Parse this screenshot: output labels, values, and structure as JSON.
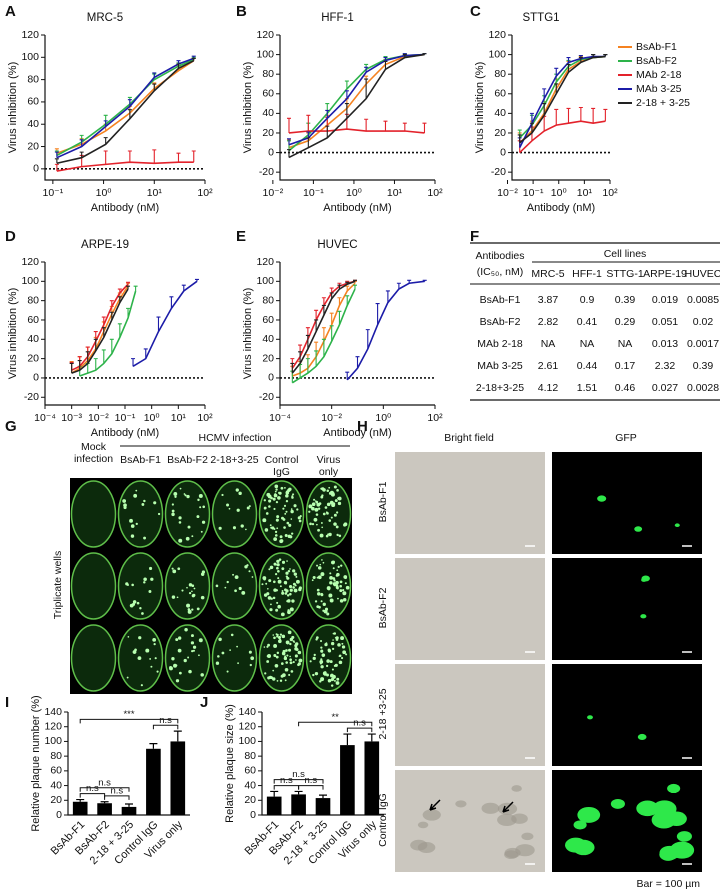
{
  "chart_data": [
    {
      "panel": "A",
      "type": "line",
      "title": "MRC-5",
      "xlabel": "Antibody (nM)",
      "ylabel": "Virus inhibition (%)",
      "xscale": "log",
      "xlim": [
        0.07,
        100
      ],
      "xticks": [
        {
          "value": 0.1,
          "label": "10⁻¹"
        },
        {
          "value": 1,
          "label": "10⁰"
        },
        {
          "value": 10,
          "label": "10¹"
        },
        {
          "value": 100,
          "label": "10²"
        }
      ],
      "ylim": [
        -10,
        120
      ],
      "yticks": [
        0,
        20,
        40,
        60,
        80,
        100,
        120
      ],
      "zero_line": true,
      "x": [
        0.12,
        0.37,
        1.1,
        3.3,
        10,
        30,
        60
      ],
      "series": [
        {
          "color": "#f58220",
          "values": [
            14,
            22,
            34,
            50,
            72,
            88,
            97
          ],
          "errors": [
            4,
            5,
            6,
            6,
            5,
            4,
            2
          ]
        },
        {
          "color": "#2db34a",
          "values": [
            12,
            24,
            40,
            58,
            80,
            92,
            98
          ],
          "errors": [
            4,
            6,
            8,
            6,
            5,
            3,
            2
          ]
        },
        {
          "color": "#e3222b",
          "values": [
            -2,
            2,
            4,
            6,
            5,
            6,
            6
          ],
          "errors": [
            6,
            10,
            12,
            10,
            12,
            8,
            10
          ]
        },
        {
          "color": "#1c1ca8",
          "values": [
            10,
            20,
            38,
            56,
            82,
            94,
            99
          ],
          "errors": [
            5,
            6,
            5,
            6,
            4,
            3,
            2
          ]
        },
        {
          "color": "#222222",
          "values": [
            5,
            10,
            22,
            45,
            70,
            90,
            97
          ],
          "errors": [
            4,
            5,
            6,
            8,
            6,
            4,
            2
          ]
        }
      ]
    },
    {
      "panel": "B",
      "type": "line",
      "title": "HFF-1",
      "xlabel": "Antibody (nM)",
      "ylabel": "Virus inhibition (%)",
      "xscale": "log",
      "xlim": [
        0.015,
        100
      ],
      "xticks": [
        {
          "value": 0.01,
          "label": "10⁻²"
        },
        {
          "value": 0.1,
          "label": "10⁻¹"
        },
        {
          "value": 1,
          "label": "10⁰"
        },
        {
          "value": 10,
          "label": "10¹"
        },
        {
          "value": 100,
          "label": "10²"
        }
      ],
      "ylim": [
        -28,
        120
      ],
      "yticks": [
        -20,
        0,
        20,
        40,
        60,
        80,
        100,
        120
      ],
      "zero_line": true,
      "x": [
        0.025,
        0.075,
        0.22,
        0.67,
        2,
        6,
        18,
        55
      ],
      "series": [
        {
          "color": "#f58220",
          "values": [
            5,
            12,
            28,
            45,
            70,
            90,
            98,
            100
          ],
          "errors": [
            8,
            8,
            10,
            10,
            8,
            5,
            2,
            1
          ]
        },
        {
          "color": "#2db34a",
          "values": [
            2,
            18,
            40,
            65,
            85,
            95,
            99,
            100
          ],
          "errors": [
            10,
            12,
            10,
            8,
            5,
            3,
            2,
            1
          ]
        },
        {
          "color": "#e3222b",
          "values": [
            20,
            22,
            22,
            24,
            22,
            22,
            22,
            20
          ],
          "errors": [
            15,
            16,
            14,
            15,
            12,
            10,
            8,
            10
          ]
        },
        {
          "color": "#1c1ca8",
          "values": [
            8,
            15,
            35,
            55,
            82,
            94,
            99,
            100
          ],
          "errors": [
            6,
            6,
            8,
            8,
            5,
            3,
            2,
            1
          ]
        },
        {
          "color": "#222222",
          "values": [
            -5,
            5,
            15,
            35,
            55,
            85,
            97,
            100
          ],
          "errors": [
            8,
            10,
            12,
            15,
            20,
            8,
            3,
            1
          ]
        }
      ]
    },
    {
      "panel": "C",
      "type": "line",
      "title": "STTG1",
      "xlabel": "Antibody (nM)",
      "ylabel": "Virus inhibition (%)",
      "xscale": "log",
      "xlim": [
        0.015,
        100
      ],
      "xticks": [
        {
          "value": 0.01,
          "label": "10⁻²"
        },
        {
          "value": 0.1,
          "label": "10⁻¹"
        },
        {
          "value": 1,
          "label": "10⁰"
        },
        {
          "value": 10,
          "label": "10¹"
        },
        {
          "value": 100,
          "label": "10²"
        }
      ],
      "ylim": [
        -28,
        120
      ],
      "yticks": [
        -20,
        0,
        20,
        40,
        60,
        80,
        100,
        120
      ],
      "zero_line": true,
      "legend": "right",
      "x": [
        0.03,
        0.09,
        0.27,
        0.8,
        2.4,
        7.3,
        22,
        66
      ],
      "series": [
        {
          "name": "BsAb-F1",
          "color": "#f58220",
          "values": [
            10,
            22,
            40,
            65,
            85,
            93,
            97,
            98
          ],
          "errors": [
            10,
            10,
            12,
            10,
            8,
            5,
            3,
            2
          ]
        },
        {
          "name": "BsAb-F2",
          "color": "#2db34a",
          "values": [
            15,
            28,
            48,
            72,
            88,
            95,
            97,
            98
          ],
          "errors": [
            8,
            10,
            10,
            8,
            6,
            4,
            3,
            2
          ]
        },
        {
          "name": "MAb 2-18",
          "color": "#e3222b",
          "values": [
            0,
            12,
            22,
            28,
            30,
            32,
            30,
            32
          ],
          "errors": [
            12,
            14,
            15,
            16,
            15,
            14,
            15,
            12
          ]
        },
        {
          "name": "MAb 3-25",
          "color": "#1c1ca8",
          "values": [
            5,
            30,
            55,
            78,
            92,
            96,
            98,
            98
          ],
          "errors": [
            10,
            10,
            10,
            8,
            5,
            3,
            2,
            2
          ]
        },
        {
          "name": "2-18 + 3-25",
          "color": "#222222",
          "values": [
            10,
            20,
            38,
            60,
            82,
            92,
            97,
            98
          ],
          "errors": [
            8,
            10,
            12,
            10,
            8,
            5,
            3,
            2
          ]
        }
      ]
    },
    {
      "panel": "D",
      "type": "line",
      "title": "ARPE-19",
      "xlabel": "Antibody (nM)",
      "ylabel": "Virus inhibition (%)",
      "xscale": "log",
      "xlim": [
        0.0001,
        100
      ],
      "xticks": [
        {
          "value": 0.0001,
          "label": "10⁻⁴"
        },
        {
          "value": 0.001,
          "label": "10⁻³"
        },
        {
          "value": 0.01,
          "label": "10⁻²"
        },
        {
          "value": 0.1,
          "label": "10⁻¹"
        },
        {
          "value": 1,
          "label": "10⁰"
        },
        {
          "value": 10,
          "label": "10¹"
        },
        {
          "value": 100,
          "label": "10²"
        }
      ],
      "ylim": [
        -28,
        120
      ],
      "yticks": [
        -20,
        0,
        20,
        40,
        60,
        80,
        100,
        120
      ],
      "zero_line": true,
      "series": [
        {
          "color": "#f58220",
          "x": [
            0.001,
            0.002,
            0.004,
            0.008,
            0.016,
            0.032,
            0.064,
            0.13
          ],
          "values": [
            5,
            10,
            18,
            30,
            48,
            66,
            82,
            95
          ],
          "errors": [
            12,
            12,
            14,
            12,
            10,
            8,
            6,
            3
          ]
        },
        {
          "color": "#2db34a",
          "x": [
            0.002,
            0.004,
            0.008,
            0.016,
            0.032,
            0.064,
            0.13,
            0.25
          ],
          "values": [
            2,
            5,
            8,
            15,
            25,
            42,
            62,
            90
          ],
          "errors": [
            10,
            10,
            12,
            14,
            15,
            14,
            10,
            5
          ]
        },
        {
          "color": "#e3222b",
          "x": [
            0.001,
            0.002,
            0.004,
            0.008,
            0.016,
            0.032,
            0.064,
            0.13
          ],
          "values": [
            8,
            12,
            22,
            38,
            55,
            74,
            88,
            97
          ],
          "errors": [
            8,
            10,
            10,
            10,
            8,
            6,
            4,
            2
          ]
        },
        {
          "color": "#1c1ca8",
          "x": [
            0.2,
            0.6,
            1.8,
            5.5,
            16,
            50
          ],
          "values": [
            12,
            20,
            48,
            72,
            90,
            100
          ],
          "errors": [
            8,
            10,
            15,
            12,
            6,
            2
          ]
        },
        {
          "color": "#222222",
          "x": [
            0.001,
            0.002,
            0.004,
            0.008,
            0.016,
            0.032,
            0.064,
            0.13
          ],
          "values": [
            5,
            8,
            15,
            28,
            42,
            60,
            78,
            92
          ],
          "errors": [
            10,
            10,
            12,
            12,
            10,
            8,
            6,
            3
          ]
        }
      ]
    },
    {
      "panel": "E",
      "type": "line",
      "title": "HUVEC",
      "xlabel": "Antibody (nM)",
      "ylabel": "Virus inhibition (%)",
      "xscale": "log",
      "xlim": [
        0.0001,
        100
      ],
      "xticks": [
        {
          "value": 0.0001,
          "label": "10⁻⁴"
        },
        {
          "value": 0.01,
          "label": "10⁻²"
        },
        {
          "value": 1,
          "label": "10⁰"
        },
        {
          "value": 100,
          "label": "10²"
        }
      ],
      "ylim": [
        -28,
        120
      ],
      "yticks": [
        -20,
        0,
        20,
        40,
        60,
        80,
        100,
        120
      ],
      "zero_line": true,
      "series": [
        {
          "color": "#f58220",
          "x": [
            0.0003,
            0.0006,
            0.0012,
            0.0025,
            0.005,
            0.01,
            0.02,
            0.04,
            0.08
          ],
          "values": [
            2,
            5,
            10,
            22,
            38,
            55,
            75,
            90,
            98
          ],
          "errors": [
            10,
            12,
            14,
            15,
            14,
            12,
            8,
            5,
            2
          ]
        },
        {
          "color": "#2db34a",
          "x": [
            0.0003,
            0.0006,
            0.0012,
            0.0025,
            0.005,
            0.01,
            0.02,
            0.04,
            0.08
          ],
          "values": [
            -5,
            0,
            5,
            12,
            22,
            38,
            55,
            75,
            92
          ],
          "errors": [
            12,
            14,
            15,
            16,
            18,
            16,
            14,
            10,
            4
          ]
        },
        {
          "color": "#e3222b",
          "x": [
            0.0003,
            0.0006,
            0.0012,
            0.0025,
            0.005,
            0.01,
            0.02,
            0.04,
            0.08
          ],
          "values": [
            10,
            22,
            40,
            60,
            75,
            88,
            95,
            98,
            100
          ],
          "errors": [
            10,
            12,
            12,
            10,
            8,
            5,
            3,
            2,
            1
          ]
        },
        {
          "color": "#1c1ca8",
          "x": [
            0.04,
            0.1,
            0.25,
            0.6,
            1.5,
            4,
            10,
            40
          ],
          "values": [
            -2,
            10,
            30,
            55,
            78,
            92,
            98,
            100
          ],
          "errors": [
            8,
            12,
            20,
            22,
            12,
            6,
            3,
            1
          ]
        },
        {
          "color": "#222222",
          "x": [
            0.0003,
            0.0006,
            0.0012,
            0.0025,
            0.005,
            0.01,
            0.02,
            0.04,
            0.08
          ],
          "values": [
            5,
            15,
            30,
            48,
            65,
            82,
            92,
            97,
            100
          ],
          "errors": [
            10,
            12,
            14,
            12,
            10,
            6,
            4,
            2,
            1
          ]
        }
      ]
    },
    {
      "panel": "I",
      "type": "bar",
      "ylabel": "Relative plaque number (%)",
      "color": "#000000",
      "categories": [
        "BsAb-F1",
        "BsAb-F2",
        "2-18 + 3-25",
        "Control IgG",
        "Virus only"
      ],
      "values": [
        18,
        16,
        11,
        90,
        100
      ],
      "errors": [
        3,
        2,
        4,
        7,
        14
      ],
      "ylim": [
        0,
        140
      ],
      "yticks": [
        0,
        20,
        40,
        60,
        80,
        100,
        120,
        140
      ],
      "significance": [
        {
          "from": 0,
          "to": 1,
          "label": "n.s"
        },
        {
          "from": 1,
          "to": 2,
          "label": "n.s"
        },
        {
          "from": 0,
          "to": 2,
          "label": "n.s"
        },
        {
          "from": 3,
          "to": 4,
          "label": "n.s"
        },
        {
          "from": 0,
          "to": 4,
          "label": "***"
        }
      ]
    },
    {
      "panel": "J",
      "type": "bar",
      "ylabel": "Relative plaque size (%)",
      "color": "#000000",
      "categories": [
        "BsAb-F1",
        "BsAb-F2",
        "2-18 + 3-25",
        "Control IgG",
        "Virus only"
      ],
      "values": [
        25,
        28,
        23,
        95,
        100
      ],
      "errors": [
        7,
        4,
        4,
        15,
        10
      ],
      "ylim": [
        0,
        140
      ],
      "yticks": [
        0,
        20,
        40,
        60,
        80,
        100,
        120,
        140
      ],
      "significance": [
        {
          "from": 0,
          "to": 1,
          "label": "n.s"
        },
        {
          "from": 1,
          "to": 2,
          "label": "n.s"
        },
        {
          "from": 0,
          "to": 2,
          "label": "n.s"
        },
        {
          "from": 3,
          "to": 4,
          "label": "n.s"
        },
        {
          "from": 1,
          "to": 4,
          "label": "**"
        }
      ]
    }
  ],
  "table": {
    "panel": "F",
    "header": {
      "label": "Antibodies",
      "unit": "(IC₅₀, nM)",
      "group": "Cell lines",
      "columns": [
        "MRC-5",
        "HFF-1",
        "STTG-1",
        "ARPE-19",
        "HUVEC"
      ]
    },
    "rows": [
      [
        "BsAb-F1",
        3.87,
        0.9,
        0.39,
        0.019,
        0.0085
      ],
      [
        "BsAb-F2",
        2.82,
        0.41,
        0.29,
        0.051,
        0.02
      ],
      [
        "MAb 2-18",
        "NA",
        "NA",
        "NA",
        0.013,
        0.0017
      ],
      [
        "MAb 3-25",
        2.61,
        0.44,
        0.17,
        2.32,
        0.39
      ],
      [
        "2-18+3-25",
        4.12,
        1.51,
        0.46,
        0.027,
        0.0028
      ]
    ]
  },
  "plates": {
    "panel": "G",
    "title": "HCMV infection",
    "columns": [
      "Mock infection",
      "BsAb-F1",
      "BsAb-F2",
      "2-18+3-25",
      "Control IgG",
      "Virus only"
    ],
    "row_label": "Triplicate wells"
  },
  "micrographs": {
    "panel": "H",
    "columns": [
      "Bright field",
      "GFP"
    ],
    "rows": [
      "BsAb-F1",
      "BsAb-F2",
      "2-18 +3-25",
      "Control IgG"
    ],
    "scale_note": "Bar = 100 µm"
  }
}
